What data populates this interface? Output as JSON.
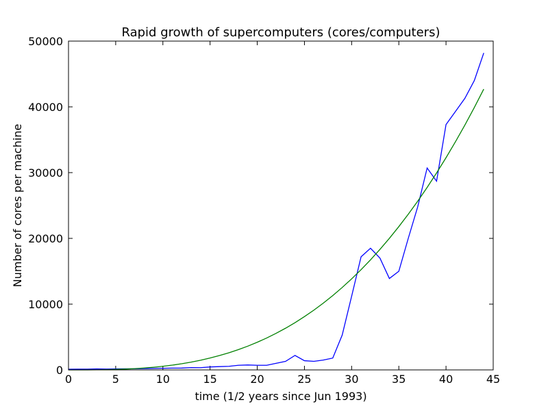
{
  "chart_data": {
    "type": "line",
    "title": "Rapid growth of supercomputers (cores/computers)",
    "x_label": "time (1/2 years since Jun 1993)",
    "y_label": "Number of cores per machine",
    "x": [
      0,
      1,
      2,
      3,
      4,
      5,
      6,
      7,
      8,
      9,
      10,
      11,
      12,
      13,
      14,
      15,
      16,
      17,
      18,
      19,
      20,
      21,
      22,
      23,
      24,
      25,
      26,
      27,
      28,
      29,
      30,
      31,
      32,
      33,
      34,
      35,
      36,
      37,
      38,
      39,
      40,
      41,
      42,
      43,
      44
    ],
    "series": [
      {
        "color": "#0000ff",
        "values": [
          100,
          110,
          120,
          150,
          130,
          150,
          160,
          170,
          200,
          220,
          250,
          270,
          280,
          350,
          340,
          450,
          500,
          550,
          700,
          750,
          700,
          700,
          1000,
          1300,
          2200,
          1400,
          1300,
          1500,
          1800,
          5300,
          11200,
          17200,
          18500,
          17000,
          13900,
          15000,
          20000,
          24800,
          30700,
          28700,
          37300,
          39300,
          41300,
          44000,
          48200
        ]
      },
      {
        "color": "#008000",
        "values": [
          0,
          1,
          5,
          16,
          37,
          71,
          122,
          192,
          284,
          402,
          548,
          725,
          936,
          1184,
          1473,
          1804,
          2182,
          2607,
          3084,
          3615,
          4205,
          4851,
          5564,
          6341,
          7186,
          8104,
          9091,
          10158,
          11303,
          12532,
          13848,
          15244,
          16738,
          18327,
          20009,
          21790,
          23669,
          25654,
          27751,
          29950,
          32264,
          34694,
          37239,
          39907,
          42700
        ]
      }
    ],
    "xlim": [
      0,
      45
    ],
    "xticks": [
      0,
      5,
      10,
      15,
      20,
      25,
      30,
      35,
      40,
      45
    ],
    "ylim": [
      0,
      50000
    ],
    "yticks": [
      0,
      10000,
      20000,
      30000,
      40000,
      50000
    ],
    "grid": false
  }
}
